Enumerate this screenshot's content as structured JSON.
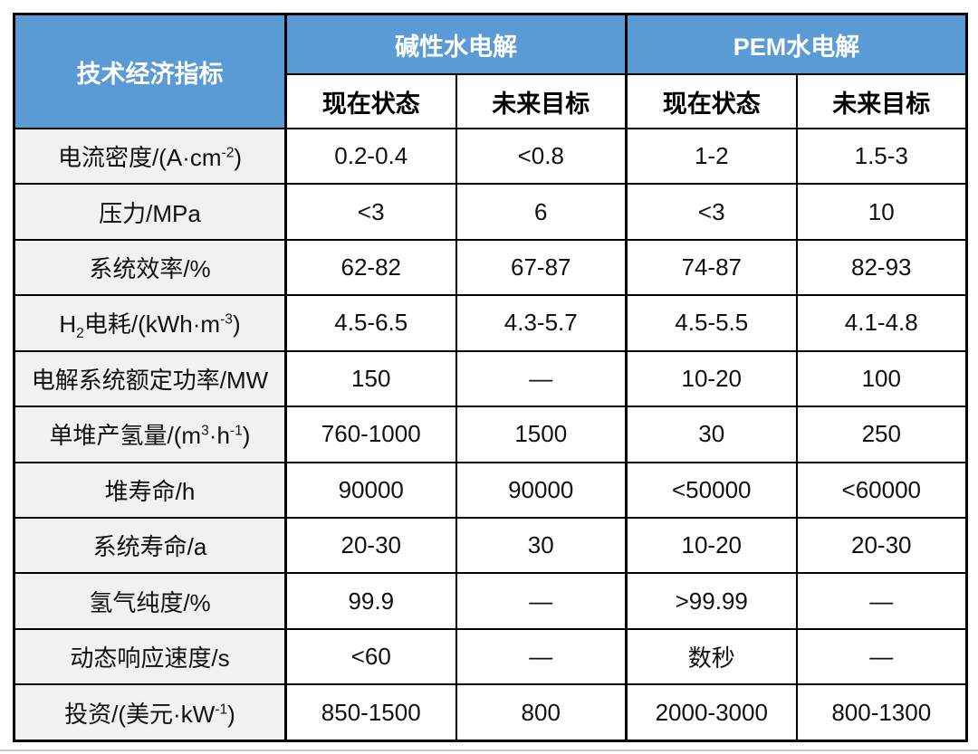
{
  "table": {
    "corner_header": "技术经济指标",
    "groups": [
      {
        "label": "碱性水电解",
        "columns": [
          "现在状态",
          "未来目标"
        ]
      },
      {
        "label": "PEM水电解",
        "columns": [
          "现在状态",
          "未来目标"
        ]
      }
    ],
    "rows": [
      {
        "label_parts": [
          {
            "t": "电流密度/(A·cm"
          },
          {
            "sup": "-2"
          },
          {
            "t": ")"
          }
        ],
        "values": [
          "0.2-0.4",
          "<0.8",
          "1-2",
          "1.5-3"
        ]
      },
      {
        "label_parts": [
          {
            "t": "压力/MPa"
          }
        ],
        "values": [
          "<3",
          "6",
          "<3",
          "10"
        ]
      },
      {
        "label_parts": [
          {
            "t": "系统效率/%"
          }
        ],
        "values": [
          "62-82",
          "67-87",
          "74-87",
          "82-93"
        ]
      },
      {
        "label_parts": [
          {
            "t": "H"
          },
          {
            "sub": "2"
          },
          {
            "t": "电耗/(kWh·m"
          },
          {
            "sup": "-3"
          },
          {
            "t": ")"
          }
        ],
        "values": [
          "4.5-6.5",
          "4.3-5.7",
          "4.5-5.5",
          "4.1-4.8"
        ]
      },
      {
        "label_parts": [
          {
            "t": "电解系统额定功率/MW"
          }
        ],
        "values": [
          "150",
          "—",
          "10-20",
          "100"
        ]
      },
      {
        "label_parts": [
          {
            "t": "单堆产氢量/(m"
          },
          {
            "sup": "3"
          },
          {
            "t": "·h"
          },
          {
            "sup": "-1"
          },
          {
            "t": ")"
          }
        ],
        "values": [
          "760-1000",
          "1500",
          "30",
          "250"
        ]
      },
      {
        "label_parts": [
          {
            "t": "堆寿命/h"
          }
        ],
        "values": [
          "90000",
          "90000",
          "<50000",
          "<60000"
        ]
      },
      {
        "label_parts": [
          {
            "t": "系统寿命/a"
          }
        ],
        "values": [
          "20-30",
          "30",
          "10-20",
          "20-30"
        ]
      },
      {
        "label_parts": [
          {
            "t": "氢气纯度/%"
          }
        ],
        "values": [
          "99.9",
          "—",
          ">99.99",
          "—"
        ]
      },
      {
        "label_parts": [
          {
            "t": "动态响应速度/s"
          }
        ],
        "values": [
          "<60",
          "—",
          "数秒",
          "—"
        ]
      },
      {
        "label_parts": [
          {
            "t": "投资/(美元·kW"
          },
          {
            "sup": "-1"
          },
          {
            "t": ")"
          }
        ],
        "values": [
          "850-1500",
          "800",
          "2000-3000",
          "800-1300"
        ]
      }
    ]
  },
  "colors": {
    "header_blue": "#5B9BD5",
    "label_gray": "#F1F1F1",
    "border_black": "#000000",
    "header_text": "#FFFFFF",
    "body_text": "#111111"
  },
  "chart_data": {
    "type": "table",
    "title": "",
    "columns": [
      "技术经济指标",
      "碱性水电解 现在状态",
      "碱性水电解 未来目标",
      "PEM水电解 现在状态",
      "PEM水电解 未来目标"
    ],
    "rows": [
      [
        "电流密度/(A·cm⁻²)",
        "0.2-0.4",
        "<0.8",
        "1-2",
        "1.5-3"
      ],
      [
        "压力/MPa",
        "<3",
        "6",
        "<3",
        "10"
      ],
      [
        "系统效率/%",
        "62-82",
        "67-87",
        "74-87",
        "82-93"
      ],
      [
        "H₂电耗/(kWh·m⁻³)",
        "4.5-6.5",
        "4.3-5.7",
        "4.5-5.5",
        "4.1-4.8"
      ],
      [
        "电解系统额定功率/MW",
        "150",
        "—",
        "10-20",
        "100"
      ],
      [
        "单堆产氢量/(m³·h⁻¹)",
        "760-1000",
        "1500",
        "30",
        "250"
      ],
      [
        "堆寿命/h",
        "90000",
        "90000",
        "<50000",
        "<60000"
      ],
      [
        "系统寿命/a",
        "20-30",
        "30",
        "10-20",
        "20-30"
      ],
      [
        "氢气纯度/%",
        "99.9",
        "—",
        ">99.99",
        "—"
      ],
      [
        "动态响应速度/s",
        "<60",
        "—",
        "数秒",
        "—"
      ],
      [
        "投资/(美元·kW⁻¹)",
        "850-1500",
        "800",
        "2000-3000",
        "800-1300"
      ]
    ]
  }
}
